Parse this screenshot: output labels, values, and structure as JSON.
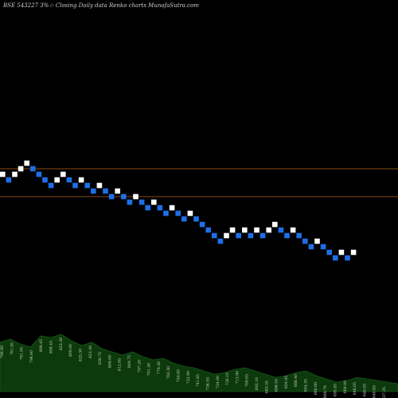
{
  "chart_data": {
    "type": "renko",
    "title": "BSE 543227 3%☆ Closing Daily data Renko charts MunafaSutra.com",
    "colors": {
      "background": "#000000",
      "up_brick": "#ffffff",
      "down_brick": "#1e6fe6",
      "reference_line": "#b8651b",
      "volume_fill": "#0c3a0c",
      "text": "#cfcfcf"
    },
    "brick_step": 6.5,
    "y_range": [
      0,
      500
    ],
    "reference_levels": [
      0.506,
      0.576
    ],
    "bricks": [
      {
        "i": 0,
        "level": 0.562,
        "dir": "up"
      },
      {
        "i": 1,
        "level": 0.548,
        "dir": "down"
      },
      {
        "i": 2,
        "level": 0.562,
        "dir": "up"
      },
      {
        "i": 3,
        "level": 0.576,
        "dir": "up"
      },
      {
        "i": 4,
        "level": 0.59,
        "dir": "up"
      },
      {
        "i": 5,
        "level": 0.576,
        "dir": "down"
      },
      {
        "i": 6,
        "level": 0.562,
        "dir": "down"
      },
      {
        "i": 7,
        "level": 0.548,
        "dir": "down"
      },
      {
        "i": 8,
        "level": 0.534,
        "dir": "down"
      },
      {
        "i": 9,
        "level": 0.548,
        "dir": "up"
      },
      {
        "i": 10,
        "level": 0.562,
        "dir": "up"
      },
      {
        "i": 11,
        "level": 0.548,
        "dir": "down"
      },
      {
        "i": 12,
        "level": 0.534,
        "dir": "down"
      },
      {
        "i": 13,
        "level": 0.548,
        "dir": "up"
      },
      {
        "i": 14,
        "level": 0.534,
        "dir": "down"
      },
      {
        "i": 15,
        "level": 0.52,
        "dir": "down"
      },
      {
        "i": 16,
        "level": 0.534,
        "dir": "up"
      },
      {
        "i": 17,
        "level": 0.52,
        "dir": "down"
      },
      {
        "i": 18,
        "level": 0.506,
        "dir": "down"
      },
      {
        "i": 19,
        "level": 0.52,
        "dir": "up"
      },
      {
        "i": 20,
        "level": 0.506,
        "dir": "down"
      },
      {
        "i": 21,
        "level": 0.492,
        "dir": "down"
      },
      {
        "i": 22,
        "level": 0.506,
        "dir": "up"
      },
      {
        "i": 23,
        "level": 0.492,
        "dir": "down"
      },
      {
        "i": 24,
        "level": 0.478,
        "dir": "down"
      },
      {
        "i": 25,
        "level": 0.492,
        "dir": "up"
      },
      {
        "i": 26,
        "level": 0.478,
        "dir": "down"
      },
      {
        "i": 27,
        "level": 0.464,
        "dir": "down"
      },
      {
        "i": 28,
        "level": 0.478,
        "dir": "up"
      },
      {
        "i": 29,
        "level": 0.464,
        "dir": "down"
      },
      {
        "i": 30,
        "level": 0.45,
        "dir": "down"
      },
      {
        "i": 31,
        "level": 0.464,
        "dir": "up"
      },
      {
        "i": 32,
        "level": 0.45,
        "dir": "down"
      },
      {
        "i": 33,
        "level": 0.436,
        "dir": "down"
      },
      {
        "i": 34,
        "level": 0.422,
        "dir": "down"
      },
      {
        "i": 35,
        "level": 0.408,
        "dir": "down"
      },
      {
        "i": 36,
        "level": 0.394,
        "dir": "down"
      },
      {
        "i": 37,
        "level": 0.408,
        "dir": "up"
      },
      {
        "i": 38,
        "level": 0.422,
        "dir": "up"
      },
      {
        "i": 39,
        "level": 0.408,
        "dir": "down"
      },
      {
        "i": 40,
        "level": 0.422,
        "dir": "up"
      },
      {
        "i": 41,
        "level": 0.408,
        "dir": "down"
      },
      {
        "i": 42,
        "level": 0.422,
        "dir": "up"
      },
      {
        "i": 43,
        "level": 0.408,
        "dir": "down"
      },
      {
        "i": 44,
        "level": 0.422,
        "dir": "up"
      },
      {
        "i": 45,
        "level": 0.436,
        "dir": "up"
      },
      {
        "i": 46,
        "level": 0.422,
        "dir": "down"
      },
      {
        "i": 47,
        "level": 0.408,
        "dir": "down"
      },
      {
        "i": 48,
        "level": 0.422,
        "dir": "up"
      },
      {
        "i": 49,
        "level": 0.408,
        "dir": "down"
      },
      {
        "i": 50,
        "level": 0.394,
        "dir": "down"
      },
      {
        "i": 51,
        "level": 0.38,
        "dir": "down"
      },
      {
        "i": 52,
        "level": 0.394,
        "dir": "up"
      },
      {
        "i": 53,
        "level": 0.38,
        "dir": "down"
      },
      {
        "i": 54,
        "level": 0.366,
        "dir": "down"
      },
      {
        "i": 55,
        "level": 0.352,
        "dir": "down"
      },
      {
        "i": 56,
        "level": 0.366,
        "dir": "up"
      },
      {
        "i": 57,
        "level": 0.352,
        "dir": "down"
      },
      {
        "i": 58,
        "level": 0.366,
        "dir": "up"
      }
    ],
    "volume": [
      0.62,
      0.66,
      0.6,
      0.56,
      0.7,
      0.68,
      0.72,
      0.64,
      0.58,
      0.62,
      0.54,
      0.5,
      0.46,
      0.5,
      0.44,
      0.4,
      0.42,
      0.36,
      0.32,
      0.3,
      0.26,
      0.22,
      0.24,
      0.28,
      0.3,
      0.26,
      0.22,
      0.18,
      0.2,
      0.24,
      0.26,
      0.2,
      0.16,
      0.12,
      0.14,
      0.18,
      0.16,
      0.14,
      0.12,
      0.1
    ],
    "volume_labels": [
      "796.80",
      "761.95",
      "761.95",
      "796.60",
      "808.45",
      "808.45",
      "823.30",
      "809.00",
      "825.30",
      "823.30",
      "830.75",
      "809.00",
      "812.85",
      "809.75",
      "797.20",
      "791.30",
      "779.30",
      "763.30",
      "749.85",
      "722.90",
      "741.65",
      "736.55",
      "724.00",
      "726.10",
      "713.90",
      "709.05",
      "692.10",
      "683.55",
      "686.55",
      "654.95",
      "668.40",
      "654.35",
      "660.60",
      "689.70",
      "695.85",
      "664.00",
      "646.05",
      "646.05",
      "640.65",
      "637.35"
    ]
  }
}
